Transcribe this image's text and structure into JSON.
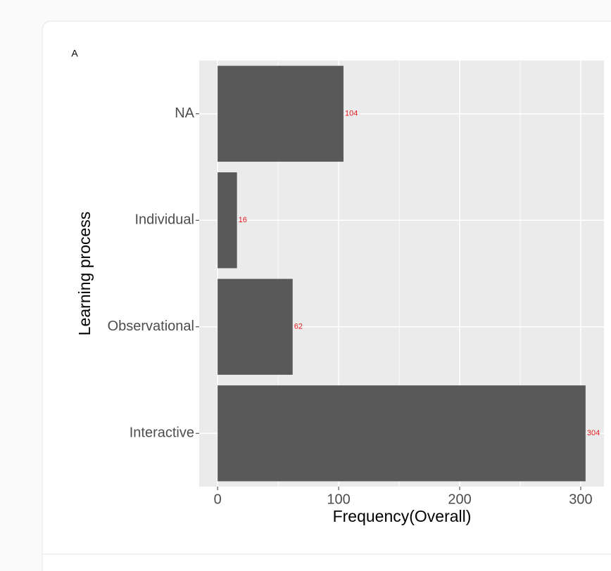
{
  "chart_data": {
    "type": "barh",
    "panel_label": "A",
    "y_label": "Learning process",
    "x_label": "Frequency(Overall)",
    "categories": [
      "NA",
      "Individual",
      "Observational",
      "Interactive"
    ],
    "values": [
      104,
      16,
      62,
      304
    ],
    "color": "#595959",
    "value_label_color": "#e41a1c",
    "xlim": [
      -15.2,
      319.2
    ],
    "xticks": [
      0,
      100,
      200,
      300
    ],
    "minor_xticks": [
      50,
      150,
      250
    ],
    "grid": true
  }
}
